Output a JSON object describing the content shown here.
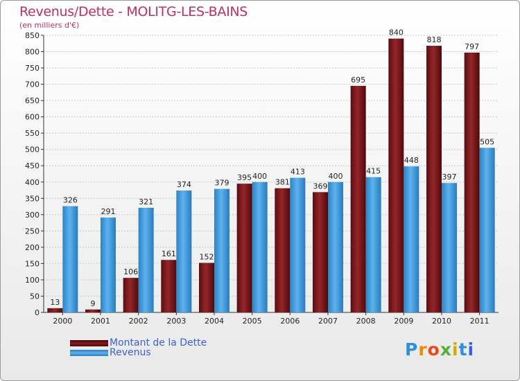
{
  "title": "Revenus/Dette - MOLITG-LES-BAINS",
  "subtitle": "(en milliers d'€)",
  "legend": {
    "debt_label": "Montant de la Dette",
    "revenue_label": "Revenus"
  },
  "logo": {
    "text": "Proxiti"
  },
  "colors": {
    "debt": "#7a1518",
    "revenue": "#3d98dc",
    "title": "#c0305a",
    "legend_text": "#3b5fd9"
  },
  "chart_data": {
    "type": "bar",
    "title": "Revenus/Dette - MOLITG-LES-BAINS",
    "ylabel": "(en milliers d'€)",
    "xlabel": "",
    "categories": [
      "2000",
      "2001",
      "2002",
      "2003",
      "2004",
      "2005",
      "2006",
      "2007",
      "2008",
      "2009",
      "2010",
      "2011"
    ],
    "ylim": [
      0,
      850
    ],
    "yticks": [
      0,
      50,
      100,
      150,
      200,
      250,
      300,
      350,
      400,
      450,
      500,
      550,
      600,
      650,
      700,
      750,
      800,
      850
    ],
    "grid": true,
    "series": [
      {
        "name": "Montant de la Dette",
        "values": [
          13,
          9,
          106,
          161,
          152,
          395,
          381,
          369,
          695,
          840,
          818,
          797
        ]
      },
      {
        "name": "Revenus",
        "values": [
          326,
          291,
          321,
          374,
          379,
          400,
          413,
          400,
          415,
          448,
          397,
          505
        ]
      }
    ]
  }
}
